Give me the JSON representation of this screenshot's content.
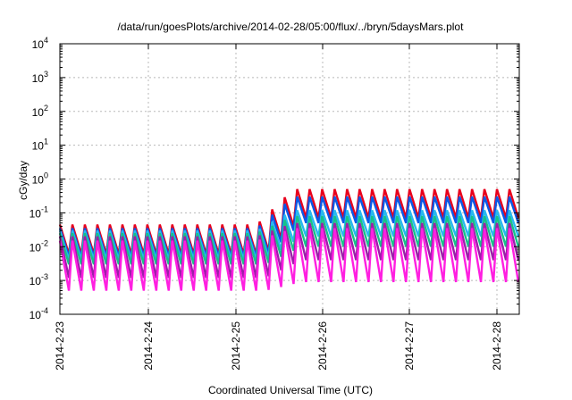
{
  "chart_data": {
    "type": "line",
    "title": "/data/run/goesPlots/archive/2014-02-28/05:00/flux/../bryn/5daysMars.plot",
    "xlabel": "Coordinated Universal Time (UTC)",
    "ylabel": "cGy/day",
    "yscale": "log",
    "ylim": [
      0.0001,
      10000
    ],
    "xlim": [
      "2014-02-23 00:00",
      "2014-02-28 06:00"
    ],
    "x_ticks": [
      "2014-2-23",
      "2014-2-24",
      "2014-2-25",
      "2014-2-26",
      "2014-2-27",
      "2014-2-28"
    ],
    "y_ticks": [
      {
        "base": "10",
        "exp": "-4"
      },
      {
        "base": "10",
        "exp": "-3"
      },
      {
        "base": "10",
        "exp": "-2"
      },
      {
        "base": "10",
        "exp": "-1"
      },
      {
        "base": "10",
        "exp": "0"
      },
      {
        "base": "10",
        "exp": "1"
      },
      {
        "base": "10",
        "exp": "2"
      },
      {
        "base": "10",
        "exp": "3"
      },
      {
        "base": "10",
        "exp": "4"
      }
    ],
    "grid": true,
    "legend": "none",
    "pattern": {
      "description_free": true,
      "cycles_per_day": 7,
      "first_peak": "2014-02-23 00:00",
      "step_up_time": "2014-02-25 06:00",
      "rise_duration": "2014-02-25 16:00"
    },
    "series": [
      {
        "color": "#e8001c",
        "peak_before": 0.045,
        "peak_after": 0.5,
        "trough_before": 0.006,
        "trough_after": 0.07
      },
      {
        "color": "#0a58e6",
        "peak_before": 0.035,
        "peak_after": 0.3,
        "trough_before": 0.005,
        "trough_after": 0.05
      },
      {
        "color": "#27b8f0",
        "peak_before": 0.03,
        "peak_after": 0.12,
        "trough_before": 0.004,
        "trough_after": 0.02
      },
      {
        "color": "#17c289",
        "peak_before": 0.025,
        "peak_after": 0.08,
        "trough_before": 0.003,
        "trough_after": 0.01
      },
      {
        "color": "#9b1fa8",
        "peak_before": 0.02,
        "peak_after": 0.05,
        "trough_before": 0.0012,
        "trough_after": 0.004
      },
      {
        "color": "#ff1fe1",
        "peak_before": 0.015,
        "peak_after": 0.035,
        "trough_before": 0.0005,
        "trough_after": 0.0009
      }
    ]
  }
}
